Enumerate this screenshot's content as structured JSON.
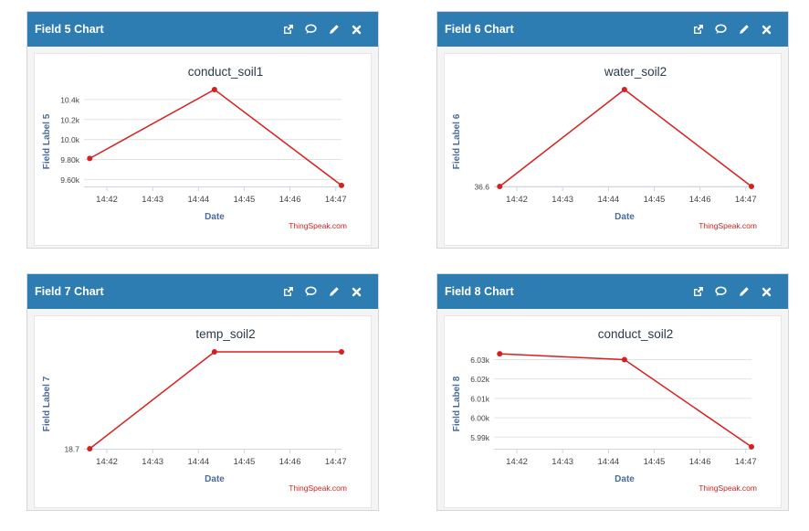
{
  "widgets": [
    {
      "title": "Field 5 Chart",
      "icons": [
        "external-link-icon",
        "comment-icon",
        "pencil-icon",
        "close-icon"
      ],
      "chart_data": {
        "type": "line",
        "title": "conduct_soil1",
        "xlabel": "Date",
        "ylabel": "Field Label 5",
        "x_ticks": [
          "14:42",
          "14:43",
          "14:44",
          "14:45",
          "14:46",
          "14:47"
        ],
        "y_ticks": [
          "9.60k",
          "9.80k",
          "10.0k",
          "10.2k",
          "10.4k"
        ],
        "y_tick_values": [
          9600,
          9800,
          10000,
          10200,
          10400
        ],
        "ylim": [
          9530,
          10500
        ],
        "x_values": [
          0,
          1.09,
          2.2
        ],
        "y_values": [
          9810,
          10500,
          9540
        ],
        "gridlines": true,
        "credit": "ThingSpeak.com",
        "line_color": "#d62020"
      }
    },
    {
      "title": "Field 6 Chart",
      "icons": [
        "external-link-icon",
        "comment-icon",
        "pencil-icon",
        "close-icon"
      ],
      "chart_data": {
        "type": "line",
        "title": "water_soil2",
        "xlabel": "Date",
        "ylabel": "Field Label 6",
        "x_ticks": [
          "14:42",
          "14:43",
          "14:44",
          "14:45",
          "14:46",
          "14:47"
        ],
        "y_ticks": [
          "36.6"
        ],
        "y_tick_values": [
          36.6
        ],
        "ylim": [
          36.6,
          36.7
        ],
        "x_values": [
          0,
          1.09,
          2.2
        ],
        "y_values": [
          36.6,
          36.7,
          36.6
        ],
        "gridlines": true,
        "credit": "ThingSpeak.com",
        "line_color": "#d62020"
      }
    },
    {
      "title": "Field 7 Chart",
      "icons": [
        "external-link-icon",
        "comment-icon",
        "pencil-icon",
        "close-icon"
      ],
      "chart_data": {
        "type": "line",
        "title": "temp_soil2",
        "xlabel": "Date",
        "ylabel": "Field Label 7",
        "x_ticks": [
          "14:42",
          "14:43",
          "14:44",
          "14:45",
          "14:46",
          "14:47"
        ],
        "y_ticks": [
          "18.7"
        ],
        "y_tick_values": [
          18.7
        ],
        "ylim": [
          18.7,
          18.8
        ],
        "x_values": [
          0,
          1.09,
          2.2
        ],
        "y_values": [
          18.7,
          18.8,
          18.8
        ],
        "gridlines": false,
        "credit": "ThingSpeak.com",
        "line_color": "#d62020"
      }
    },
    {
      "title": "Field 8 Chart",
      "icons": [
        "external-link-icon",
        "comment-icon",
        "pencil-icon",
        "close-icon"
      ],
      "chart_data": {
        "type": "line",
        "title": "conduct_soil2",
        "xlabel": "Date",
        "ylabel": "Field Label 8",
        "x_ticks": [
          "14:42",
          "14:43",
          "14:44",
          "14:45",
          "14:46",
          "14:47"
        ],
        "y_ticks": [
          "5.99k",
          "6.00k",
          "6.01k",
          "6.02k",
          "6.03k"
        ],
        "y_tick_values": [
          5990,
          6000,
          6010,
          6020,
          6030
        ],
        "ylim": [
          5984,
          6034
        ],
        "x_values": [
          0,
          1.09,
          2.2
        ],
        "y_values": [
          6033,
          6030,
          5985
        ],
        "gridlines": true,
        "credit": "ThingSpeak.com",
        "line_color": "#d62020"
      }
    }
  ]
}
